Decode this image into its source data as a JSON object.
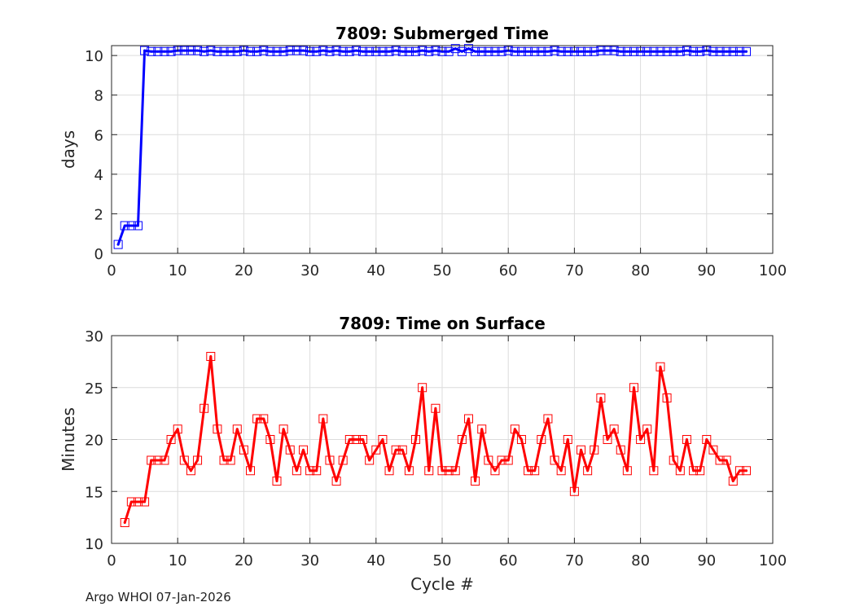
{
  "footer": "Argo WHOI 07-Jan-2026",
  "chart_data": [
    {
      "type": "line",
      "title": "7809: Submerged Time",
      "xlabel": "",
      "ylabel": "days",
      "xlim": [
        0,
        100
      ],
      "ylim": [
        0,
        10.5
      ],
      "xticks": [
        0,
        10,
        20,
        30,
        40,
        50,
        60,
        70,
        80,
        90,
        100
      ],
      "yticks": [
        0,
        2,
        4,
        6,
        8,
        10
      ],
      "grid": true,
      "color": "#0000ff",
      "series": [
        {
          "name": "Submerged Time",
          "x": [
            1,
            2,
            3,
            4,
            5,
            6,
            7,
            8,
            9,
            10,
            11,
            12,
            13,
            14,
            15,
            16,
            17,
            18,
            19,
            20,
            21,
            22,
            23,
            24,
            25,
            26,
            27,
            28,
            29,
            30,
            31,
            32,
            33,
            34,
            35,
            36,
            37,
            38,
            39,
            40,
            41,
            42,
            43,
            44,
            45,
            46,
            47,
            48,
            49,
            50,
            51,
            52,
            53,
            54,
            55,
            56,
            57,
            58,
            59,
            60,
            61,
            62,
            63,
            64,
            65,
            66,
            67,
            68,
            69,
            70,
            71,
            72,
            73,
            74,
            75,
            76,
            77,
            78,
            79,
            80,
            81,
            82,
            83,
            84,
            85,
            86,
            87,
            88,
            89,
            90,
            91,
            92,
            93,
            94,
            95,
            96
          ],
          "values": [
            0.45,
            1.4,
            1.4,
            1.4,
            10.25,
            10.2,
            10.2,
            10.2,
            10.2,
            10.25,
            10.25,
            10.25,
            10.25,
            10.2,
            10.25,
            10.2,
            10.2,
            10.2,
            10.2,
            10.25,
            10.2,
            10.2,
            10.25,
            10.2,
            10.2,
            10.2,
            10.25,
            10.25,
            10.25,
            10.2,
            10.2,
            10.25,
            10.2,
            10.25,
            10.2,
            10.2,
            10.25,
            10.2,
            10.2,
            10.2,
            10.2,
            10.2,
            10.25,
            10.2,
            10.2,
            10.2,
            10.25,
            10.2,
            10.25,
            10.2,
            10.2,
            10.35,
            10.2,
            10.35,
            10.2,
            10.2,
            10.2,
            10.2,
            10.2,
            10.25,
            10.2,
            10.2,
            10.2,
            10.2,
            10.2,
            10.2,
            10.25,
            10.2,
            10.2,
            10.2,
            10.2,
            10.2,
            10.2,
            10.25,
            10.25,
            10.25,
            10.2,
            10.2,
            10.2,
            10.2,
            10.2,
            10.2,
            10.2,
            10.2,
            10.2,
            10.2,
            10.25,
            10.2,
            10.2,
            10.25,
            10.2,
            10.2,
            10.2,
            10.2,
            10.2,
            10.2
          ]
        }
      ]
    },
    {
      "type": "line",
      "title": "7809: Time on Surface",
      "xlabel": "Cycle #",
      "ylabel": "Minutes",
      "xlim": [
        0,
        100
      ],
      "ylim": [
        10,
        30
      ],
      "xticks": [
        0,
        10,
        20,
        30,
        40,
        50,
        60,
        70,
        80,
        90,
        100
      ],
      "yticks": [
        10,
        15,
        20,
        25,
        30
      ],
      "grid": true,
      "color": "#ff0000",
      "series": [
        {
          "name": "Time on Surface",
          "x": [
            2,
            3,
            4,
            5,
            6,
            7,
            8,
            9,
            10,
            11,
            12,
            13,
            14,
            15,
            16,
            17,
            18,
            19,
            20,
            21,
            22,
            23,
            24,
            25,
            26,
            27,
            28,
            29,
            30,
            31,
            32,
            33,
            34,
            35,
            36,
            37,
            38,
            39,
            40,
            41,
            42,
            43,
            44,
            45,
            46,
            47,
            48,
            49,
            50,
            51,
            52,
            53,
            54,
            55,
            56,
            57,
            58,
            59,
            60,
            61,
            62,
            63,
            64,
            65,
            66,
            67,
            68,
            69,
            70,
            71,
            72,
            73,
            74,
            75,
            76,
            77,
            78,
            79,
            80,
            81,
            82,
            83,
            84,
            85,
            86,
            87,
            88,
            89,
            90,
            91,
            92,
            93,
            94,
            95,
            96
          ],
          "values": [
            12,
            14,
            14,
            14,
            18,
            18,
            18,
            20,
            21,
            18,
            17,
            18,
            23,
            28,
            21,
            18,
            18,
            21,
            19,
            17,
            22,
            22,
            20,
            16,
            21,
            19,
            17,
            19,
            17,
            17,
            22,
            18,
            16,
            18,
            20,
            20,
            20,
            18,
            19,
            20,
            17,
            19,
            19,
            17,
            20,
            25,
            17,
            23,
            17,
            17,
            17,
            20,
            22,
            16,
            21,
            18,
            17,
            18,
            18,
            21,
            20,
            17,
            17,
            20,
            22,
            18,
            17,
            20,
            15,
            19,
            17,
            19,
            24,
            20,
            21,
            19,
            17,
            25,
            20,
            21,
            17,
            27,
            24,
            18,
            17,
            20,
            17,
            17,
            20,
            19,
            18,
            18,
            16,
            17,
            17
          ]
        }
      ]
    }
  ]
}
